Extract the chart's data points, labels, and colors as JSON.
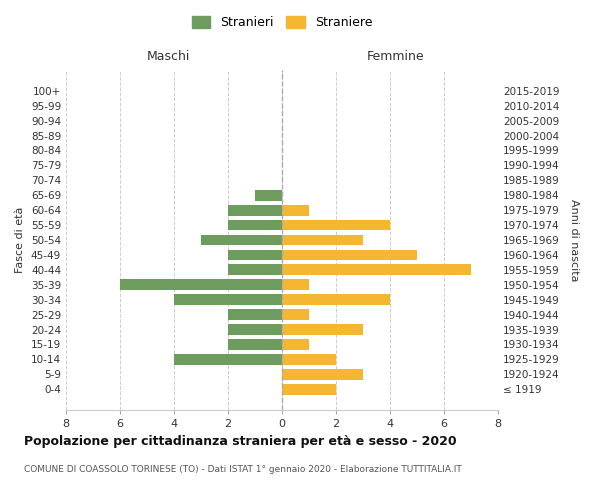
{
  "age_groups": [
    "100+",
    "95-99",
    "90-94",
    "85-89",
    "80-84",
    "75-79",
    "70-74",
    "65-69",
    "60-64",
    "55-59",
    "50-54",
    "45-49",
    "40-44",
    "35-39",
    "30-34",
    "25-29",
    "20-24",
    "15-19",
    "10-14",
    "5-9",
    "0-4"
  ],
  "birth_years": [
    "≤ 1919",
    "1920-1924",
    "1925-1929",
    "1930-1934",
    "1935-1939",
    "1940-1944",
    "1945-1949",
    "1950-1954",
    "1955-1959",
    "1960-1964",
    "1965-1969",
    "1970-1974",
    "1975-1979",
    "1980-1984",
    "1985-1989",
    "1990-1994",
    "1995-1999",
    "2000-2004",
    "2005-2009",
    "2010-2014",
    "2015-2019"
  ],
  "maschi": [
    0,
    0,
    0,
    0,
    0,
    0,
    0,
    1,
    2,
    2,
    3,
    2,
    2,
    6,
    4,
    2,
    2,
    2,
    4,
    0,
    0
  ],
  "femmine": [
    0,
    0,
    0,
    0,
    0,
    0,
    0,
    0,
    1,
    4,
    3,
    5,
    7,
    1,
    4,
    1,
    3,
    1,
    2,
    3,
    2
  ],
  "color_maschi": "#6e9c5e",
  "color_femmine": "#f5b731",
  "title": "Popolazione per cittadinanza straniera per età e sesso - 2020",
  "subtitle": "COMUNE DI COASSOLO TORINESE (TO) - Dati ISTAT 1° gennaio 2020 - Elaborazione TUTTITALIA.IT",
  "label_maschi": "Maschi",
  "label_femmine": "Femmine",
  "legend_stranieri": "Stranieri",
  "legend_straniere": "Straniere",
  "ylabel_left": "Fasce di età",
  "ylabel_right": "Anni di nascita",
  "xlim": 8,
  "background_color": "#ffffff",
  "grid_color": "#cccccc"
}
